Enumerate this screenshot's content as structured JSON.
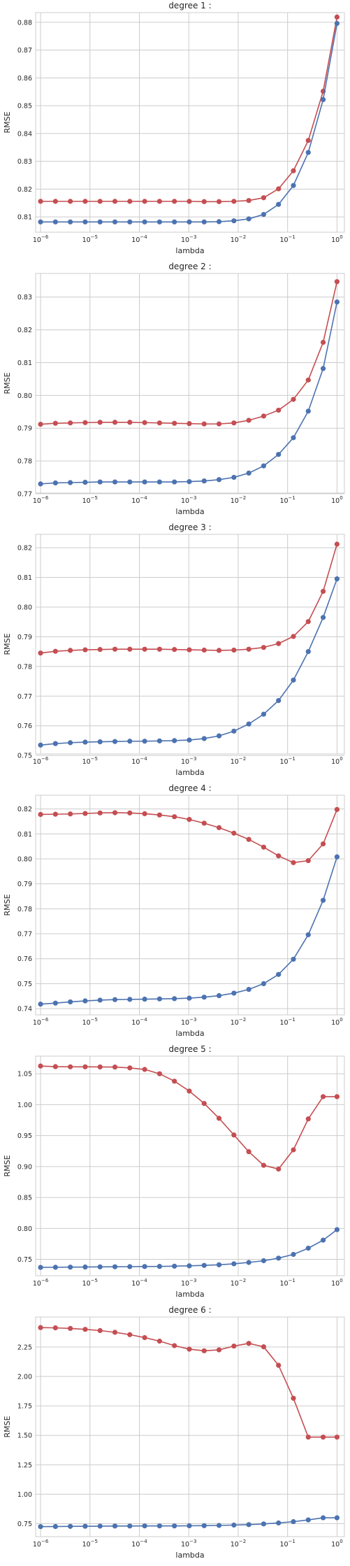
{
  "colors": {
    "red": "#c44e52",
    "blue": "#4c72b0",
    "grid": "#cccccc"
  },
  "chart_data": [
    {
      "type": "line",
      "title": "degree 1 :",
      "xlabel": "lambda",
      "ylabel": "RMSE",
      "xscale": "log",
      "xlim": [
        -6.1,
        0.15
      ],
      "ylim": [
        0.8045,
        0.8835
      ],
      "x": [
        1e-06,
        2e-06,
        4e-06,
        8e-06,
        1.6e-05,
        3.2e-05,
        6.4e-05,
        0.000128,
        0.000256,
        0.000512,
        0.001024,
        0.002048,
        0.004096,
        0.008192,
        0.016384,
        0.032768,
        0.065536,
        0.131072,
        0.262144,
        0.524288,
        1.0
      ],
      "xticks": [
        {
          "base": "10",
          "exp": "−6",
          "v": -6
        },
        {
          "base": "10",
          "exp": "−5",
          "v": -5
        },
        {
          "base": "10",
          "exp": "−4",
          "v": -4
        },
        {
          "base": "10",
          "exp": "−3",
          "v": -3
        },
        {
          "base": "10",
          "exp": "−2",
          "v": -2
        },
        {
          "base": "10",
          "exp": "−1",
          "v": -1
        },
        {
          "base": "10",
          "exp": "0",
          "v": 0
        }
      ],
      "yticks": [
        {
          "label": "0.81",
          "v": 0.81
        },
        {
          "label": "0.82",
          "v": 0.82
        },
        {
          "label": "0.83",
          "v": 0.83
        },
        {
          "label": "0.84",
          "v": 0.84
        },
        {
          "label": "0.85",
          "v": 0.85
        },
        {
          "label": "0.86",
          "v": 0.86
        },
        {
          "label": "0.87",
          "v": 0.87
        },
        {
          "label": "0.88",
          "v": 0.88
        }
      ],
      "series": [
        {
          "color": "red",
          "values": [
            0.8156,
            0.8156,
            0.8156,
            0.8156,
            0.8156,
            0.8156,
            0.8156,
            0.8156,
            0.8156,
            0.8156,
            0.8156,
            0.8155,
            0.8155,
            0.8156,
            0.8159,
            0.8169,
            0.8201,
            0.8266,
            0.8375,
            0.8552,
            0.8819
          ]
        },
        {
          "color": "blue",
          "values": [
            0.8082,
            0.8082,
            0.8082,
            0.8082,
            0.8082,
            0.8082,
            0.8082,
            0.8082,
            0.8082,
            0.8082,
            0.8082,
            0.8082,
            0.8083,
            0.8086,
            0.8093,
            0.8109,
            0.8145,
            0.8213,
            0.8332,
            0.8522,
            0.8796
          ]
        }
      ]
    },
    {
      "type": "line",
      "title": "degree 2 :",
      "xlabel": "lambda",
      "ylabel": "RMSE",
      "xscale": "log",
      "xlim": [
        -6.1,
        0.15
      ],
      "ylim": [
        0.7702,
        0.8372
      ],
      "x": [
        1e-06,
        2e-06,
        4e-06,
        8e-06,
        1.6e-05,
        3.2e-05,
        6.4e-05,
        0.000128,
        0.000256,
        0.000512,
        0.001024,
        0.002048,
        0.004096,
        0.008192,
        0.016384,
        0.032768,
        0.065536,
        0.131072,
        0.262144,
        0.524288,
        1.0
      ],
      "xticks": [
        {
          "base": "10",
          "exp": "−6",
          "v": -6
        },
        {
          "base": "10",
          "exp": "−5",
          "v": -5
        },
        {
          "base": "10",
          "exp": "−4",
          "v": -4
        },
        {
          "base": "10",
          "exp": "−3",
          "v": -3
        },
        {
          "base": "10",
          "exp": "−2",
          "v": -2
        },
        {
          "base": "10",
          "exp": "−1",
          "v": -1
        },
        {
          "base": "10",
          "exp": "0",
          "v": 0
        }
      ],
      "yticks": [
        {
          "label": "0.77",
          "v": 0.77
        },
        {
          "label": "0.78",
          "v": 0.78
        },
        {
          "label": "0.79",
          "v": 0.79
        },
        {
          "label": "0.80",
          "v": 0.8
        },
        {
          "label": "0.81",
          "v": 0.81
        },
        {
          "label": "0.82",
          "v": 0.82
        },
        {
          "label": "0.83",
          "v": 0.83
        }
      ],
      "series": [
        {
          "color": "red",
          "values": [
            0.7912,
            0.7915,
            0.7916,
            0.7917,
            0.7918,
            0.7918,
            0.7918,
            0.7917,
            0.7916,
            0.7915,
            0.7914,
            0.7913,
            0.7913,
            0.7916,
            0.7924,
            0.7937,
            0.7955,
            0.7988,
            0.8047,
            0.8162,
            0.8347
          ]
        },
        {
          "color": "blue",
          "values": [
            0.773,
            0.7733,
            0.7734,
            0.7735,
            0.7736,
            0.7736,
            0.7736,
            0.7736,
            0.7736,
            0.7736,
            0.7737,
            0.7739,
            0.7743,
            0.775,
            0.7763,
            0.7785,
            0.782,
            0.7871,
            0.7952,
            0.8082,
            0.8285
          ]
        }
      ]
    },
    {
      "type": "line",
      "title": "degree 3 :",
      "xlabel": "lambda",
      "ylabel": "RMSE",
      "xscale": "log",
      "xlim": [
        -6.1,
        0.15
      ],
      "ylim": [
        0.7505,
        0.8245
      ],
      "x": [
        1e-06,
        2e-06,
        4e-06,
        8e-06,
        1.6e-05,
        3.2e-05,
        6.4e-05,
        0.000128,
        0.000256,
        0.000512,
        0.001024,
        0.002048,
        0.004096,
        0.008192,
        0.016384,
        0.032768,
        0.065536,
        0.131072,
        0.262144,
        0.524288,
        1.0
      ],
      "xticks": [
        {
          "base": "10",
          "exp": "−6",
          "v": -6
        },
        {
          "base": "10",
          "exp": "−5",
          "v": -5
        },
        {
          "base": "10",
          "exp": "−4",
          "v": -4
        },
        {
          "base": "10",
          "exp": "−3",
          "v": -3
        },
        {
          "base": "10",
          "exp": "−2",
          "v": -2
        },
        {
          "base": "10",
          "exp": "−1",
          "v": -1
        },
        {
          "base": "10",
          "exp": "0",
          "v": 0
        }
      ],
      "yticks": [
        {
          "label": "0.75",
          "v": 0.75
        },
        {
          "label": "0.76",
          "v": 0.76
        },
        {
          "label": "0.77",
          "v": 0.77
        },
        {
          "label": "0.78",
          "v": 0.78
        },
        {
          "label": "0.79",
          "v": 0.79
        },
        {
          "label": "0.80",
          "v": 0.8
        },
        {
          "label": "0.81",
          "v": 0.81
        },
        {
          "label": "0.82",
          "v": 0.82
        }
      ],
      "series": [
        {
          "color": "red",
          "values": [
            0.7845,
            0.7851,
            0.7854,
            0.7856,
            0.7857,
            0.7858,
            0.7858,
            0.7858,
            0.7858,
            0.7857,
            0.7856,
            0.7855,
            0.7854,
            0.7855,
            0.7858,
            0.7864,
            0.7877,
            0.7901,
            0.7951,
            0.8053,
            0.8212
          ]
        },
        {
          "color": "blue",
          "values": [
            0.7535,
            0.754,
            0.7543,
            0.7545,
            0.7546,
            0.7547,
            0.7548,
            0.7548,
            0.7549,
            0.755,
            0.7552,
            0.7557,
            0.7566,
            0.7582,
            0.7606,
            0.7639,
            0.7685,
            0.7754,
            0.785,
            0.7965,
            0.8095
          ]
        }
      ]
    },
    {
      "type": "line",
      "title": "degree 4 :",
      "xlabel": "lambda",
      "ylabel": "RMSE",
      "xscale": "log",
      "xlim": [
        -6.1,
        0.15
      ],
      "ylim": [
        0.7375,
        0.8255
      ],
      "x": [
        1e-06,
        2e-06,
        4e-06,
        8e-06,
        1.6e-05,
        3.2e-05,
        6.4e-05,
        0.000128,
        0.000256,
        0.000512,
        0.001024,
        0.002048,
        0.004096,
        0.008192,
        0.016384,
        0.032768,
        0.065536,
        0.131072,
        0.262144,
        0.524288,
        1.0
      ],
      "xticks": [
        {
          "base": "10",
          "exp": "−6",
          "v": -6
        },
        {
          "base": "10",
          "exp": "−5",
          "v": -5
        },
        {
          "base": "10",
          "exp": "−4",
          "v": -4
        },
        {
          "base": "10",
          "exp": "−3",
          "v": -3
        },
        {
          "base": "10",
          "exp": "−2",
          "v": -2
        },
        {
          "base": "10",
          "exp": "−1",
          "v": -1
        },
        {
          "base": "10",
          "exp": "0",
          "v": 0
        }
      ],
      "yticks": [
        {
          "label": "0.74",
          "v": 0.74
        },
        {
          "label": "0.75",
          "v": 0.75
        },
        {
          "label": "0.76",
          "v": 0.76
        },
        {
          "label": "0.77",
          "v": 0.77
        },
        {
          "label": "0.78",
          "v": 0.78
        },
        {
          "label": "0.79",
          "v": 0.79
        },
        {
          "label": "0.80",
          "v": 0.8
        },
        {
          "label": "0.81",
          "v": 0.81
        },
        {
          "label": "0.82",
          "v": 0.82
        }
      ],
      "series": [
        {
          "color": "red",
          "values": [
            0.8178,
            0.8179,
            0.818,
            0.8182,
            0.8184,
            0.8185,
            0.8184,
            0.8181,
            0.8176,
            0.8169,
            0.8158,
            0.8143,
            0.8125,
            0.8103,
            0.8078,
            0.8047,
            0.8012,
            0.7985,
            0.7993,
            0.806,
            0.8198
          ]
        },
        {
          "color": "blue",
          "values": [
            0.7418,
            0.7422,
            0.7427,
            0.7431,
            0.7434,
            0.7436,
            0.7437,
            0.7438,
            0.7439,
            0.744,
            0.7442,
            0.7446,
            0.7452,
            0.7462,
            0.7477,
            0.75,
            0.7537,
            0.7598,
            0.7696,
            0.7834,
            0.8008
          ]
        }
      ]
    },
    {
      "type": "line",
      "title": "degree 5 :",
      "xlabel": "lambda",
      "ylabel": "RMSE",
      "xscale": "log",
      "xlim": [
        -6.1,
        0.15
      ],
      "ylim": [
        0.7235,
        1.0785
      ],
      "x": [
        1e-06,
        2e-06,
        4e-06,
        8e-06,
        1.6e-05,
        3.2e-05,
        6.4e-05,
        0.000128,
        0.000256,
        0.000512,
        0.001024,
        0.002048,
        0.004096,
        0.008192,
        0.016384,
        0.032768,
        0.065536,
        0.131072,
        0.262144,
        0.524288,
        1.0
      ],
      "xticks": [
        {
          "base": "10",
          "exp": "−6",
          "v": -6
        },
        {
          "base": "10",
          "exp": "−5",
          "v": -5
        },
        {
          "base": "10",
          "exp": "−4",
          "v": -4
        },
        {
          "base": "10",
          "exp": "−3",
          "v": -3
        },
        {
          "base": "10",
          "exp": "−2",
          "v": -2
        },
        {
          "base": "10",
          "exp": "−1",
          "v": -1
        },
        {
          "base": "10",
          "exp": "0",
          "v": 0
        }
      ],
      "yticks": [
        {
          "label": "0.75",
          "v": 0.75
        },
        {
          "label": "0.80",
          "v": 0.8
        },
        {
          "label": "0.85",
          "v": 0.85
        },
        {
          "label": "0.90",
          "v": 0.9
        },
        {
          "label": "0.95",
          "v": 0.95
        },
        {
          "label": "1.00",
          "v": 1.0
        },
        {
          "label": "1.05",
          "v": 1.05
        }
      ],
      "series": [
        {
          "color": "red",
          "values": [
            1.0625,
            1.0615,
            1.0612,
            1.0612,
            1.061,
            1.0608,
            1.0595,
            1.057,
            1.05,
            1.038,
            1.022,
            1.002,
            0.978,
            0.951,
            0.924,
            0.902,
            0.896,
            0.927,
            0.977,
            1.013,
            1.013
          ]
        },
        {
          "color": "blue",
          "values": [
            0.737,
            0.7372,
            0.7374,
            0.7376,
            0.7378,
            0.738,
            0.7382,
            0.7384,
            0.7386,
            0.739,
            0.7395,
            0.7402,
            0.7412,
            0.7428,
            0.745,
            0.7478,
            0.752,
            0.758,
            0.768,
            0.781,
            0.798
          ]
        }
      ]
    },
    {
      "type": "line",
      "title": "degree 6 :",
      "xlabel": "lambda",
      "ylabel": "RMSE",
      "xscale": "log",
      "xlim": [
        -6.1,
        0.15
      ],
      "ylim": [
        0.64,
        2.505
      ],
      "x": [
        1e-06,
        2e-06,
        4e-06,
        8e-06,
        1.6e-05,
        3.2e-05,
        6.4e-05,
        0.000128,
        0.000256,
        0.000512,
        0.001024,
        0.002048,
        0.004096,
        0.008192,
        0.016384,
        0.032768,
        0.065536,
        0.131072,
        0.262144,
        0.524288,
        1.0
      ],
      "xticks": [
        {
          "base": "10",
          "exp": "−6",
          "v": -6
        },
        {
          "base": "10",
          "exp": "−5",
          "v": -5
        },
        {
          "base": "10",
          "exp": "−4",
          "v": -4
        },
        {
          "base": "10",
          "exp": "−3",
          "v": -3
        },
        {
          "base": "10",
          "exp": "−2",
          "v": -2
        },
        {
          "base": "10",
          "exp": "−1",
          "v": -1
        },
        {
          "base": "10",
          "exp": "0",
          "v": 0
        }
      ],
      "yticks": [
        {
          "label": "0.75",
          "v": 0.75
        },
        {
          "label": "1.00",
          "v": 1.0
        },
        {
          "label": "1.25",
          "v": 1.25
        },
        {
          "label": "1.50",
          "v": 1.5
        },
        {
          "label": "1.75",
          "v": 1.75
        },
        {
          "label": "2.00",
          "v": 2.0
        },
        {
          "label": "2.25",
          "v": 2.25
        }
      ],
      "series": [
        {
          "color": "red",
          "values": [
            2.415,
            2.413,
            2.408,
            2.4,
            2.39,
            2.375,
            2.355,
            2.33,
            2.3,
            2.262,
            2.232,
            2.218,
            2.226,
            2.258,
            2.281,
            2.252,
            2.095,
            1.815,
            1.485,
            1.485,
            1.485
          ]
        },
        {
          "color": "blue",
          "values": [
            0.725,
            0.726,
            0.727,
            0.728,
            0.729,
            0.73,
            0.73,
            0.731,
            0.731,
            0.731,
            0.732,
            0.733,
            0.735,
            0.738,
            0.742,
            0.748,
            0.756,
            0.767,
            0.782,
            0.8,
            0.8
          ]
        }
      ]
    }
  ]
}
